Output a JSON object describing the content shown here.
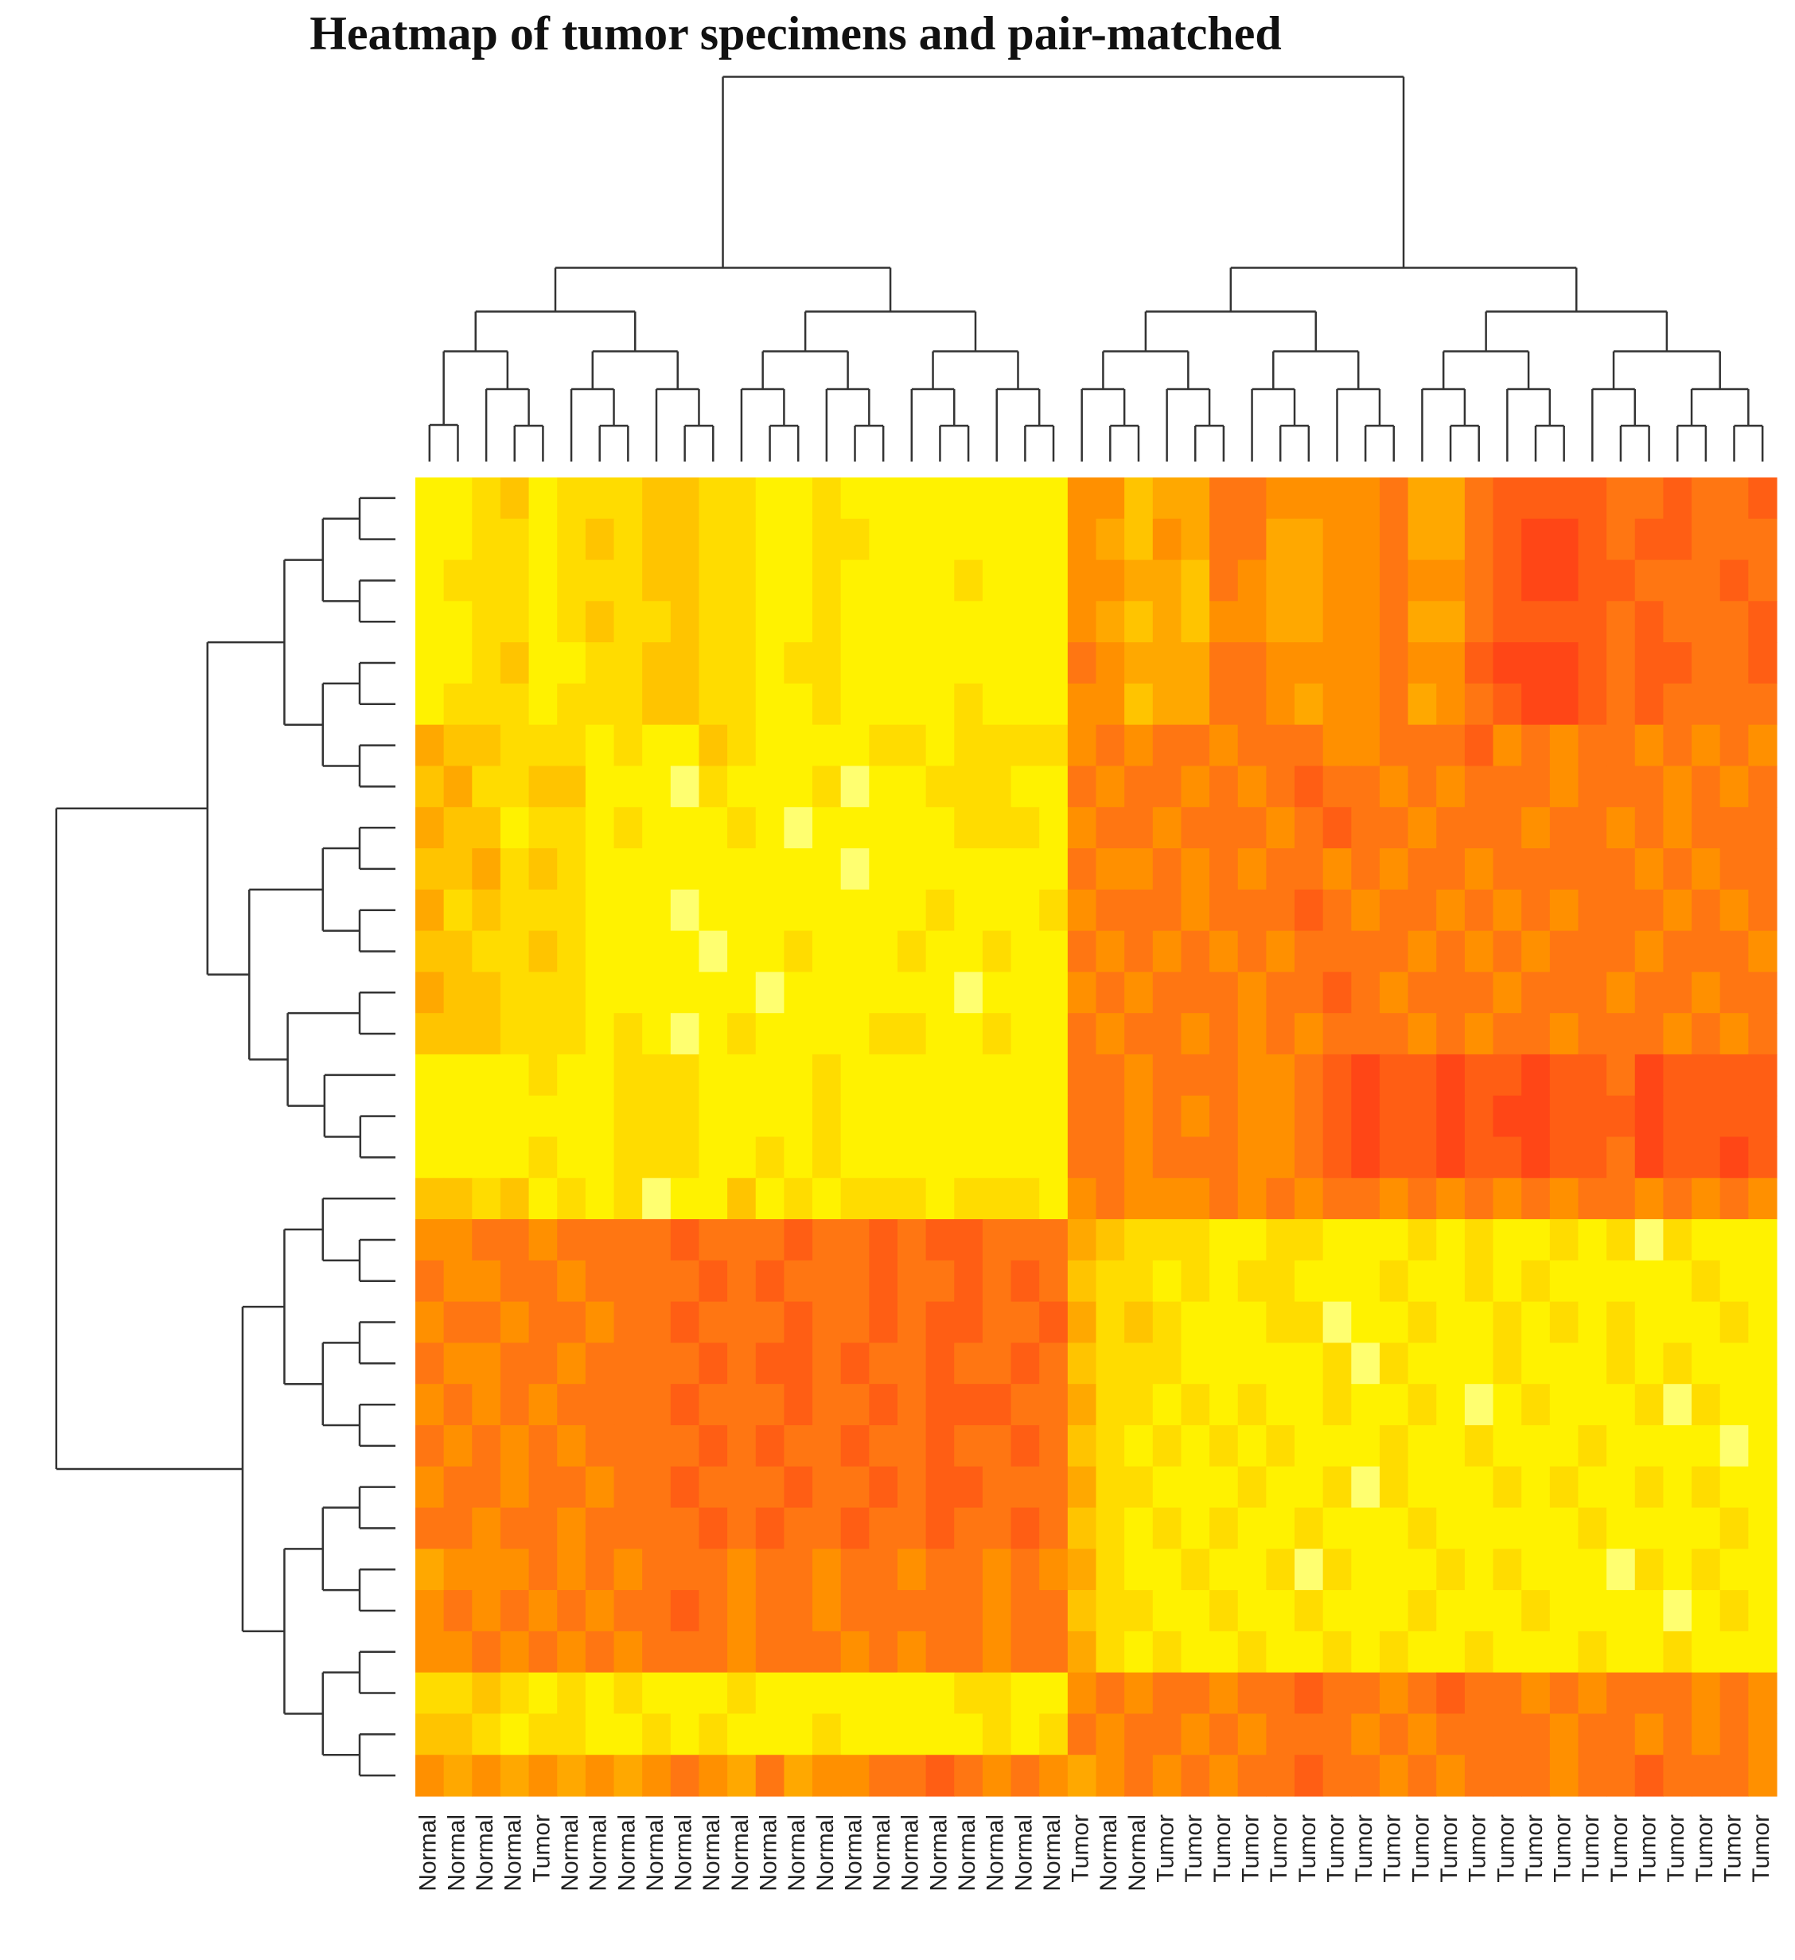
{
  "chart_data": {
    "type": "heatmap",
    "title": "Heatmap of tumor specimens and pair-matched",
    "categories": [
      "Normal",
      "Normal",
      "Normal",
      "Normal",
      "Tumor",
      "Normal",
      "Normal",
      "Normal",
      "Normal",
      "Normal",
      "Normal",
      "Normal",
      "Normal",
      "Normal",
      "Normal",
      "Normal",
      "Normal",
      "Normal",
      "Normal",
      "Normal",
      "Normal",
      "Normal",
      "Normal",
      "Tumor",
      "Normal",
      "Normal",
      "Tumor",
      "Tumor",
      "Tumor",
      "Tumor",
      "Tumor",
      "Tumor",
      "Tumor",
      "Tumor",
      "Tumor",
      "Tumor",
      "Tumor",
      "Tumor",
      "Tumor",
      "Tumor",
      "Tumor",
      "Tumor",
      "Tumor",
      "Tumor",
      "Tumor",
      "Tumor",
      "Tumor",
      "Tumor"
    ],
    "colormap": [
      "#fffbe0",
      "#ffff70",
      "#fff200",
      "#ffdc00",
      "#ffc400",
      "#ffa800",
      "#ff9000",
      "#ff7612",
      "#ff5e14",
      "#ff4616"
    ],
    "values": [
      [
        2,
        2,
        3,
        4,
        2,
        3,
        3,
        3,
        4,
        4,
        3,
        3,
        2,
        2,
        3,
        2,
        2,
        2,
        2,
        2,
        2,
        2,
        2,
        6,
        6,
        4,
        5,
        5,
        7,
        7,
        6,
        6,
        6,
        6,
        7,
        5,
        5,
        7,
        8,
        8,
        8,
        8,
        7,
        7,
        8,
        7,
        7,
        8
      ],
      [
        2,
        2,
        3,
        3,
        2,
        3,
        4,
        3,
        4,
        4,
        3,
        3,
        2,
        2,
        3,
        3,
        2,
        2,
        2,
        2,
        2,
        2,
        2,
        6,
        5,
        4,
        6,
        5,
        7,
        7,
        5,
        5,
        6,
        6,
        7,
        5,
        5,
        7,
        8,
        9,
        9,
        8,
        7,
        8,
        8,
        7,
        7,
        7
      ],
      [
        2,
        3,
        3,
        3,
        2,
        3,
        3,
        3,
        4,
        4,
        3,
        3,
        2,
        2,
        3,
        2,
        2,
        2,
        2,
        3,
        2,
        2,
        2,
        6,
        6,
        5,
        5,
        4,
        7,
        6,
        5,
        5,
        6,
        6,
        7,
        6,
        6,
        7,
        8,
        9,
        9,
        8,
        8,
        7,
        7,
        7,
        8,
        7
      ],
      [
        2,
        2,
        3,
        3,
        2,
        3,
        4,
        3,
        3,
        4,
        3,
        3,
        2,
        2,
        3,
        2,
        2,
        2,
        2,
        2,
        2,
        2,
        2,
        6,
        5,
        4,
        5,
        4,
        6,
        6,
        5,
        5,
        6,
        6,
        7,
        5,
        5,
        7,
        8,
        8,
        8,
        8,
        7,
        8,
        7,
        7,
        7,
        8
      ],
      [
        2,
        2,
        3,
        4,
        2,
        2,
        3,
        3,
        4,
        4,
        3,
        3,
        2,
        3,
        3,
        2,
        2,
        2,
        2,
        2,
        2,
        2,
        2,
        7,
        6,
        5,
        5,
        5,
        7,
        7,
        6,
        6,
        6,
        6,
        7,
        6,
        6,
        8,
        9,
        9,
        9,
        8,
        7,
        8,
        8,
        7,
        7,
        8
      ],
      [
        2,
        3,
        3,
        3,
        2,
        3,
        3,
        3,
        4,
        4,
        3,
        3,
        2,
        2,
        3,
        2,
        2,
        2,
        2,
        3,
        2,
        2,
        2,
        6,
        6,
        4,
        5,
        5,
        7,
        7,
        6,
        5,
        6,
        6,
        7,
        5,
        6,
        7,
        8,
        9,
        9,
        8,
        7,
        8,
        7,
        7,
        7,
        7
      ],
      [
        5,
        4,
        4,
        3,
        3,
        3,
        2,
        3,
        2,
        2,
        4,
        3,
        2,
        2,
        2,
        2,
        3,
        3,
        2,
        3,
        3,
        3,
        3,
        6,
        7,
        6,
        7,
        7,
        6,
        7,
        7,
        7,
        6,
        6,
        7,
        7,
        7,
        8,
        6,
        7,
        6,
        7,
        7,
        6,
        7,
        6,
        7,
        6
      ],
      [
        4,
        5,
        3,
        3,
        4,
        4,
        2,
        2,
        2,
        1,
        3,
        2,
        2,
        2,
        3,
        1,
        2,
        2,
        3,
        3,
        3,
        2,
        2,
        7,
        6,
        7,
        7,
        6,
        7,
        6,
        7,
        8,
        7,
        7,
        6,
        7,
        6,
        7,
        7,
        7,
        6,
        7,
        7,
        7,
        6,
        7,
        6,
        7
      ],
      [
        5,
        4,
        4,
        2,
        3,
        3,
        2,
        3,
        2,
        2,
        2,
        3,
        2,
        1,
        2,
        2,
        2,
        2,
        2,
        3,
        3,
        3,
        2,
        6,
        7,
        7,
        6,
        7,
        7,
        7,
        6,
        7,
        8,
        7,
        7,
        6,
        7,
        7,
        7,
        6,
        7,
        7,
        6,
        7,
        6,
        7,
        7,
        7
      ],
      [
        4,
        4,
        5,
        3,
        4,
        3,
        2,
        2,
        2,
        2,
        2,
        2,
        2,
        2,
        2,
        1,
        2,
        2,
        2,
        2,
        2,
        2,
        2,
        7,
        6,
        6,
        7,
        6,
        7,
        6,
        7,
        7,
        6,
        7,
        6,
        7,
        7,
        6,
        7,
        7,
        7,
        7,
        7,
        6,
        7,
        6,
        7,
        7
      ],
      [
        5,
        3,
        4,
        3,
        3,
        3,
        2,
        2,
        2,
        1,
        2,
        2,
        2,
        2,
        2,
        2,
        2,
        2,
        3,
        2,
        2,
        2,
        3,
        6,
        7,
        7,
        7,
        6,
        7,
        7,
        7,
        8,
        7,
        6,
        7,
        7,
        6,
        7,
        6,
        7,
        6,
        7,
        7,
        7,
        6,
        7,
        6,
        7
      ],
      [
        4,
        4,
        3,
        3,
        4,
        3,
        2,
        2,
        2,
        2,
        1,
        2,
        2,
        3,
        2,
        2,
        2,
        3,
        2,
        2,
        3,
        2,
        2,
        7,
        6,
        7,
        6,
        7,
        6,
        7,
        6,
        7,
        7,
        7,
        7,
        6,
        7,
        6,
        7,
        6,
        7,
        7,
        7,
        6,
        7,
        7,
        7,
        6
      ],
      [
        5,
        4,
        4,
        3,
        3,
        3,
        2,
        2,
        2,
        2,
        2,
        2,
        1,
        2,
        2,
        2,
        2,
        2,
        2,
        1,
        2,
        2,
        2,
        6,
        7,
        6,
        7,
        7,
        7,
        6,
        7,
        7,
        8,
        7,
        6,
        7,
        7,
        7,
        6,
        7,
        7,
        7,
        6,
        7,
        7,
        6,
        7,
        7
      ],
      [
        4,
        4,
        4,
        3,
        3,
        3,
        2,
        3,
        2,
        1,
        2,
        3,
        2,
        2,
        2,
        2,
        3,
        3,
        2,
        2,
        3,
        2,
        2,
        7,
        6,
        7,
        7,
        6,
        7,
        6,
        7,
        6,
        7,
        7,
        7,
        6,
        7,
        6,
        7,
        7,
        6,
        7,
        7,
        7,
        6,
        7,
        6,
        7
      ],
      [
        2,
        2,
        2,
        2,
        3,
        2,
        2,
        3,
        3,
        3,
        2,
        2,
        2,
        2,
        3,
        2,
        2,
        2,
        2,
        2,
        2,
        2,
        2,
        7,
        7,
        6,
        7,
        7,
        7,
        6,
        6,
        7,
        8,
        9,
        8,
        8,
        9,
        8,
        8,
        9,
        8,
        8,
        7,
        9,
        8,
        8,
        8,
        8
      ],
      [
        2,
        2,
        2,
        2,
        2,
        2,
        2,
        3,
        3,
        3,
        2,
        2,
        2,
        2,
        3,
        2,
        2,
        2,
        2,
        2,
        2,
        2,
        2,
        7,
        7,
        6,
        7,
        6,
        7,
        6,
        6,
        7,
        8,
        9,
        8,
        8,
        9,
        8,
        9,
        9,
        8,
        8,
        8,
        9,
        8,
        8,
        8,
        8
      ],
      [
        2,
        2,
        2,
        2,
        3,
        2,
        2,
        3,
        3,
        3,
        2,
        2,
        3,
        2,
        3,
        2,
        2,
        2,
        2,
        2,
        2,
        2,
        2,
        7,
        7,
        6,
        7,
        7,
        7,
        6,
        6,
        7,
        8,
        9,
        8,
        8,
        9,
        8,
        8,
        9,
        8,
        8,
        7,
        9,
        8,
        8,
        9,
        8
      ],
      [
        4,
        4,
        3,
        4,
        2,
        3,
        2,
        3,
        1,
        2,
        2,
        4,
        2,
        3,
        2,
        3,
        3,
        3,
        2,
        3,
        3,
        3,
        2,
        6,
        7,
        6,
        6,
        6,
        7,
        6,
        7,
        6,
        7,
        7,
        6,
        7,
        6,
        7,
        6,
        7,
        6,
        7,
        7,
        6,
        7,
        6,
        7,
        6
      ],
      [
        6,
        6,
        7,
        7,
        6,
        7,
        7,
        7,
        7,
        8,
        7,
        7,
        7,
        8,
        7,
        7,
        8,
        7,
        8,
        8,
        7,
        7,
        7,
        5,
        4,
        3,
        3,
        3,
        2,
        2,
        3,
        3,
        2,
        2,
        2,
        3,
        2,
        3,
        2,
        2,
        3,
        2,
        3,
        1,
        3,
        2,
        2,
        2
      ],
      [
        7,
        6,
        6,
        7,
        7,
        6,
        7,
        7,
        7,
        7,
        8,
        7,
        8,
        7,
        7,
        7,
        8,
        7,
        7,
        8,
        7,
        8,
        7,
        4,
        3,
        3,
        2,
        3,
        2,
        3,
        3,
        2,
        2,
        2,
        3,
        2,
        2,
        3,
        2,
        3,
        2,
        2,
        2,
        2,
        2,
        3,
        2,
        2
      ],
      [
        6,
        7,
        7,
        6,
        7,
        7,
        6,
        7,
        7,
        8,
        7,
        7,
        7,
        8,
        7,
        7,
        8,
        7,
        8,
        8,
        7,
        7,
        8,
        5,
        3,
        4,
        3,
        2,
        2,
        2,
        3,
        3,
        1,
        2,
        2,
        3,
        2,
        2,
        3,
        2,
        3,
        2,
        3,
        2,
        2,
        2,
        3,
        2
      ],
      [
        7,
        6,
        6,
        7,
        7,
        6,
        7,
        7,
        7,
        7,
        8,
        7,
        8,
        8,
        7,
        8,
        7,
        7,
        8,
        7,
        7,
        8,
        7,
        4,
        3,
        3,
        3,
        2,
        2,
        2,
        2,
        2,
        3,
        1,
        3,
        2,
        2,
        2,
        3,
        2,
        2,
        2,
        3,
        2,
        3,
        2,
        2,
        2
      ],
      [
        6,
        7,
        6,
        7,
        6,
        7,
        7,
        7,
        7,
        8,
        7,
        7,
        7,
        8,
        7,
        7,
        8,
        7,
        8,
        8,
        8,
        7,
        7,
        5,
        3,
        3,
        2,
        3,
        2,
        3,
        2,
        2,
        3,
        2,
        2,
        3,
        2,
        1,
        2,
        3,
        2,
        2,
        2,
        3,
        1,
        3,
        2,
        2
      ],
      [
        7,
        6,
        7,
        6,
        7,
        6,
        7,
        7,
        7,
        7,
        8,
        7,
        8,
        7,
        7,
        8,
        7,
        7,
        8,
        7,
        7,
        8,
        7,
        4,
        3,
        2,
        3,
        2,
        3,
        2,
        3,
        2,
        2,
        2,
        3,
        2,
        2,
        3,
        2,
        2,
        2,
        3,
        2,
        2,
        2,
        2,
        1,
        2
      ],
      [
        6,
        7,
        7,
        6,
        7,
        7,
        6,
        7,
        7,
        8,
        7,
        7,
        7,
        8,
        7,
        7,
        8,
        7,
        8,
        8,
        7,
        7,
        7,
        5,
        3,
        3,
        2,
        2,
        2,
        3,
        2,
        2,
        3,
        1,
        3,
        2,
        2,
        2,
        3,
        2,
        3,
        2,
        2,
        3,
        2,
        3,
        2,
        2
      ],
      [
        7,
        7,
        6,
        7,
        7,
        6,
        7,
        7,
        7,
        7,
        8,
        7,
        8,
        7,
        7,
        8,
        7,
        7,
        8,
        7,
        7,
        8,
        7,
        4,
        3,
        2,
        3,
        2,
        3,
        2,
        2,
        3,
        2,
        2,
        2,
        3,
        2,
        2,
        2,
        2,
        2,
        3,
        2,
        2,
        2,
        2,
        3,
        2
      ],
      [
        5,
        6,
        6,
        6,
        7,
        6,
        7,
        6,
        7,
        7,
        7,
        6,
        7,
        7,
        6,
        7,
        7,
        6,
        7,
        7,
        6,
        7,
        6,
        5,
        3,
        2,
        2,
        3,
        2,
        2,
        3,
        1,
        3,
        2,
        2,
        2,
        3,
        2,
        3,
        2,
        2,
        2,
        1,
        3,
        2,
        3,
        2,
        2
      ],
      [
        6,
        7,
        6,
        7,
        6,
        7,
        6,
        7,
        7,
        8,
        7,
        6,
        7,
        7,
        6,
        7,
        7,
        7,
        7,
        7,
        6,
        7,
        7,
        4,
        3,
        3,
        2,
        2,
        3,
        2,
        2,
        3,
        2,
        2,
        2,
        3,
        2,
        2,
        2,
        3,
        2,
        2,
        2,
        2,
        1,
        2,
        3,
        2
      ],
      [
        6,
        6,
        7,
        6,
        7,
        6,
        7,
        6,
        7,
        7,
        7,
        6,
        7,
        7,
        7,
        6,
        7,
        6,
        7,
        7,
        6,
        7,
        7,
        5,
        3,
        2,
        3,
        2,
        2,
        3,
        2,
        2,
        3,
        2,
        3,
        2,
        2,
        3,
        2,
        2,
        2,
        3,
        2,
        2,
        3,
        2,
        2,
        2
      ],
      [
        3,
        3,
        4,
        3,
        2,
        3,
        2,
        3,
        2,
        2,
        2,
        3,
        2,
        2,
        2,
        2,
        2,
        2,
        2,
        3,
        3,
        2,
        2,
        6,
        7,
        6,
        7,
        7,
        6,
        7,
        7,
        8,
        7,
        7,
        6,
        7,
        8,
        7,
        7,
        6,
        7,
        6,
        7,
        7,
        7,
        6,
        7,
        6
      ],
      [
        4,
        4,
        3,
        2,
        3,
        3,
        2,
        2,
        3,
        2,
        3,
        2,
        2,
        2,
        3,
        2,
        2,
        2,
        2,
        2,
        3,
        2,
        3,
        7,
        6,
        7,
        7,
        6,
        7,
        6,
        7,
        7,
        7,
        6,
        7,
        6,
        7,
        7,
        7,
        7,
        6,
        7,
        7,
        6,
        7,
        6,
        7,
        6
      ],
      [
        6,
        5,
        6,
        5,
        6,
        5,
        6,
        5,
        6,
        7,
        6,
        5,
        7,
        5,
        6,
        6,
        7,
        7,
        8,
        7,
        6,
        7,
        6,
        5,
        6,
        7,
        6,
        7,
        6,
        7,
        7,
        8,
        7,
        7,
        6,
        7,
        6,
        7,
        7,
        7,
        6,
        7,
        7,
        8,
        7,
        7,
        7,
        6
      ]
    ]
  }
}
